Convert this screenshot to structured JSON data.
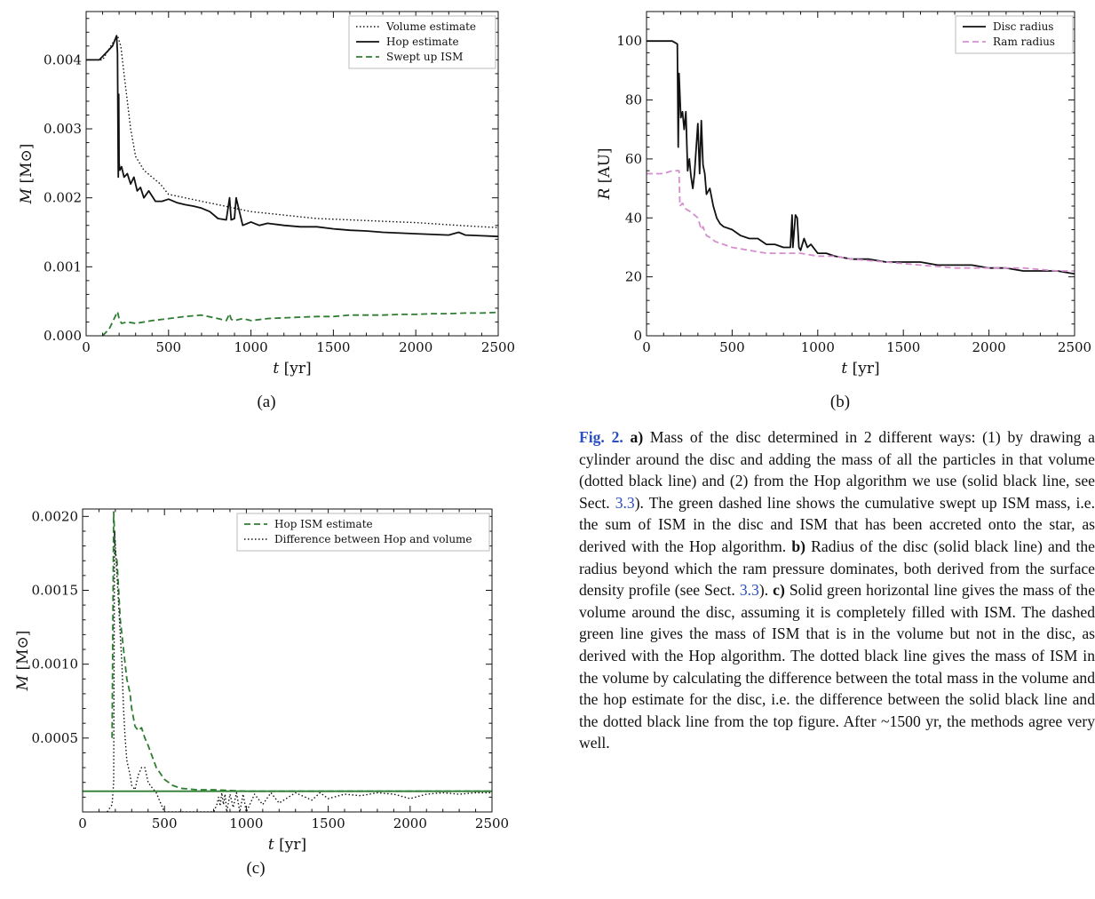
{
  "colors": {
    "black": "#111111",
    "green": "#2e7d32",
    "pink": "#d58fcf",
    "link_blue": "#2a4fc0"
  },
  "chart_data": [
    {
      "id": "a",
      "type": "line",
      "panel_label": "(a)",
      "xlabel_var": "t",
      "xlabel_unit": "[yr]",
      "ylabel_var": "M",
      "ylabel_unit": "[M⊙]",
      "xlim": [
        0,
        2500
      ],
      "ylim": [
        0,
        0.0047
      ],
      "xticks": [
        0,
        500,
        1000,
        1500,
        2000,
        2500
      ],
      "yticks": [
        0.0,
        0.001,
        0.002,
        0.003,
        0.004
      ],
      "ytick_labels": [
        "0.000",
        "0.001",
        "0.002",
        "0.003",
        "0.004"
      ],
      "legend_position": "top-right",
      "series": [
        {
          "name": "Volume estimate",
          "style": "dotted",
          "color": "#111111",
          "x": [
            0,
            100,
            150,
            190,
            210,
            240,
            270,
            300,
            350,
            400,
            450,
            500,
            600,
            700,
            800,
            900,
            1000,
            1200,
            1400,
            1600,
            1800,
            2000,
            2200,
            2400,
            2500
          ],
          "y": [
            0.004,
            0.004,
            0.0042,
            0.00435,
            0.0042,
            0.0036,
            0.003,
            0.0026,
            0.0024,
            0.0023,
            0.0022,
            0.00205,
            0.002,
            0.00195,
            0.0019,
            0.00185,
            0.0018,
            0.00175,
            0.0017,
            0.00168,
            0.00166,
            0.00164,
            0.00161,
            0.00158,
            0.00157
          ]
        },
        {
          "name": "Hop estimate",
          "style": "solid",
          "color": "#111111",
          "x": [
            0,
            80,
            120,
            160,
            185,
            190,
            195,
            198,
            200,
            205,
            215,
            230,
            250,
            270,
            290,
            310,
            330,
            350,
            380,
            420,
            460,
            500,
            550,
            600,
            650,
            700,
            750,
            800,
            850,
            870,
            880,
            900,
            910,
            950,
            1000,
            1050,
            1100,
            1200,
            1300,
            1400,
            1500,
            1600,
            1700,
            1800,
            2000,
            2200,
            2260,
            2300,
            2400,
            2500
          ],
          "y": [
            0.004,
            0.004,
            0.0041,
            0.0042,
            0.00435,
            0.0041,
            0.0023,
            0.0035,
            0.0025,
            0.0024,
            0.00245,
            0.0023,
            0.00235,
            0.0022,
            0.0023,
            0.0021,
            0.00215,
            0.002,
            0.0021,
            0.00195,
            0.00195,
            0.00198,
            0.00193,
            0.0019,
            0.00188,
            0.00185,
            0.0018,
            0.0017,
            0.00168,
            0.002,
            0.00168,
            0.0017,
            0.002,
            0.0016,
            0.00165,
            0.0016,
            0.00163,
            0.0016,
            0.00158,
            0.00158,
            0.00155,
            0.00153,
            0.00152,
            0.0015,
            0.00148,
            0.00146,
            0.0015,
            0.00146,
            0.00145,
            0.00144
          ]
        },
        {
          "name": "Swept up ISM",
          "style": "dashed",
          "color": "#2e7d32",
          "x": [
            100,
            140,
            170,
            190,
            200,
            215,
            250,
            300,
            350,
            400,
            500,
            600,
            700,
            800,
            850,
            870,
            880,
            900,
            950,
            1000,
            1100,
            1200,
            1300,
            1400,
            1500,
            1600,
            1700,
            1800,
            1900,
            2000,
            2100,
            2200,
            2300,
            2400,
            2500
          ],
          "y": [
            0.0,
            0.0001,
            0.00025,
            0.00035,
            0.00025,
            0.00018,
            0.0002,
            0.00018,
            0.0002,
            0.00022,
            0.00025,
            0.00028,
            0.0003,
            0.00025,
            0.00022,
            0.00032,
            0.00024,
            0.00022,
            0.00025,
            0.00022,
            0.00025,
            0.00026,
            0.00027,
            0.00028,
            0.00028,
            0.0003,
            0.0003,
            0.0003,
            0.00031,
            0.00031,
            0.00032,
            0.00032,
            0.00033,
            0.00033,
            0.00034
          ]
        }
      ]
    },
    {
      "id": "b",
      "type": "line",
      "panel_label": "(b)",
      "xlabel_var": "t",
      "xlabel_unit": "[yr]",
      "ylabel_var": "R",
      "ylabel_unit": "[AU]",
      "xlim": [
        0,
        2500
      ],
      "ylim": [
        0,
        110
      ],
      "xticks": [
        0,
        500,
        1000,
        1500,
        2000,
        2500
      ],
      "yticks": [
        0,
        20,
        40,
        60,
        80,
        100
      ],
      "ytick_labels": [
        "0",
        "20",
        "40",
        "60",
        "80",
        "100"
      ],
      "legend_position": "top-right",
      "series": [
        {
          "name": "Disc radius",
          "style": "solid",
          "color": "#111111",
          "x": [
            0,
            150,
            180,
            185,
            190,
            200,
            210,
            220,
            230,
            240,
            250,
            260,
            270,
            280,
            300,
            310,
            320,
            330,
            340,
            350,
            370,
            390,
            410,
            430,
            450,
            500,
            550,
            600,
            650,
            700,
            750,
            800,
            840,
            850,
            855,
            870,
            880,
            890,
            900,
            920,
            940,
            960,
            1000,
            1050,
            1100,
            1200,
            1300,
            1400,
            1500,
            1600,
            1700,
            1800,
            1900,
            2000,
            2100,
            2200,
            2300,
            2400,
            2500
          ],
          "y": [
            100,
            100,
            99,
            64,
            89,
            74,
            76,
            70,
            76,
            56,
            60,
            54,
            50,
            55,
            72,
            55,
            73,
            58,
            55,
            48,
            50,
            44,
            40,
            38,
            37,
            36,
            34,
            33,
            33,
            31,
            31,
            30,
            30,
            41,
            30,
            41,
            40,
            30,
            29,
            33,
            30,
            31,
            28,
            28,
            27,
            26,
            26,
            25,
            25,
            25,
            24,
            24,
            24,
            23,
            23,
            22,
            22,
            22,
            21
          ]
        },
        {
          "name": "Ram radius",
          "style": "dashed",
          "color": "#d58fcf",
          "x": [
            0,
            50,
            100,
            150,
            190,
            195,
            210,
            230,
            260,
            300,
            320,
            330,
            350,
            380,
            400,
            450,
            500,
            600,
            700,
            800,
            900,
            1000,
            1100,
            1200,
            1400,
            1600,
            1800,
            2000,
            2200,
            2400,
            2500
          ],
          "y": [
            55,
            55,
            55,
            56,
            56,
            44,
            45,
            43,
            42,
            40,
            36,
            37,
            34,
            33,
            32,
            31,
            30,
            29,
            28,
            28,
            28,
            27,
            27,
            26,
            25,
            24,
            23,
            23,
            23,
            22,
            22
          ]
        }
      ]
    },
    {
      "id": "c",
      "type": "line",
      "panel_label": "(c)",
      "xlabel_var": "t",
      "xlabel_unit": "[yr]",
      "ylabel_var": "M",
      "ylabel_unit": "[M⊙]",
      "xlim": [
        0,
        2500
      ],
      "ylim": [
        0,
        0.00205
      ],
      "xticks": [
        0,
        500,
        1000,
        1500,
        2000,
        2500
      ],
      "yticks": [
        0.0005,
        0.001,
        0.0015,
        0.002
      ],
      "ytick_labels": [
        "0.0005",
        "0.0010",
        "0.0015",
        "0.0020"
      ],
      "legend_position": "top-right",
      "series": [
        {
          "name": "Hop ISM estimate",
          "style": "dashed",
          "color": "#2e7d32",
          "x": [
            180,
            190,
            200,
            210,
            220,
            230,
            240,
            250,
            270,
            290,
            300,
            320,
            340,
            360,
            380,
            400,
            450,
            500,
            550,
            600,
            700,
            800,
            1000,
            1500,
            2000,
            2500
          ],
          "y": [
            0.0005,
            0.00203,
            0.00175,
            0.0017,
            0.0015,
            0.0013,
            0.0012,
            0.0011,
            0.0009,
            0.0008,
            0.0007,
            0.00058,
            0.00055,
            0.00057,
            0.0005,
            0.00045,
            0.0003,
            0.00022,
            0.00018,
            0.00016,
            0.00015,
            0.00015,
            0.00014,
            0.00014,
            0.00014,
            0.00014
          ]
        },
        {
          "name": "Difference between Hop and volume",
          "style": "dotted",
          "color": "#111111",
          "x": [
            150,
            180,
            190,
            195,
            200,
            210,
            220,
            230,
            240,
            250,
            260,
            270,
            280,
            290,
            300,
            320,
            340,
            360,
            380,
            400,
            420,
            450,
            480,
            500,
            550,
            600,
            650,
            700,
            750,
            800,
            820,
            830,
            840,
            850,
            860,
            870,
            880,
            900,
            920,
            940,
            960,
            980,
            1000,
            1050,
            1100,
            1150,
            1200,
            1300,
            1400,
            1450,
            1500,
            1600,
            1700,
            1800,
            1900,
            2000,
            2100,
            2200,
            2300,
            2400,
            2500
          ],
          "y": [
            0.0,
            5e-05,
            0.0002,
            0.0019,
            0.0018,
            0.0016,
            0.0014,
            0.0012,
            0.001,
            0.0007,
            0.0005,
            0.00035,
            0.0003,
            0.00025,
            0.00018,
            0.00015,
            0.00025,
            0.0003,
            0.0003,
            0.0002,
            0.00017,
            0.00013,
            5e-05,
            0.0,
            0.0,
            0.0,
            0.0,
            0.0,
            0.0,
            0.0,
            5e-05,
            0.0001,
            4e-05,
            0.00013,
            5e-05,
            0.00012,
            0.0,
            0.00012,
            3e-05,
            0.00013,
            0.0,
            0.00012,
            0.0,
            0.00012,
            5e-05,
            0.00013,
            6e-05,
            0.00013,
            8e-05,
            0.00013,
            9e-05,
            0.00012,
            0.00011,
            0.00013,
            0.00012,
            9e-05,
            0.00012,
            0.00013,
            0.00012,
            0.00013,
            0.00013
          ]
        },
        {
          "name": "",
          "style": "solid",
          "color": "#2e7d32",
          "x": [
            0,
            2500
          ],
          "y": [
            0.00014,
            0.00014
          ]
        }
      ]
    }
  ],
  "caption": {
    "fig_label": "Fig. 2.",
    "a_label": "a)",
    "a_text_1": " Mass of the disc determined in 2 different ways: (1) by drawing a cylinder around the disc and adding the mass of all the particles in that volume (dotted black line) and (2) from the Hop algorithm we use (solid black line, see Sect. ",
    "ref_1": "3.3",
    "a_text_2": "). The green dashed line shows the cumulative swept up ISM mass, i.e. the sum of ISM in the disc and ISM that has been accreted onto the star, as derived with the Hop algorithm. ",
    "b_label": "b)",
    "b_text_1": " Radius of the disc (solid black line) and the radius beyond which the ram pressure dominates, both derived from the surface density profile (see Sect. ",
    "ref_2": "3.3",
    "b_text_2": "). ",
    "c_label": "c)",
    "c_text": " Solid green horizontal line gives the mass of the volume around the disc, assuming it is completely filled with ISM. The dashed green line gives the mass of ISM that is in the volume but not in the disc, as derived with the Hop algorithm. The dotted black line gives the mass of ISM in the volume by calculating the difference between the total mass in the volume and the hop estimate for the disc, i.e. the difference between the solid black line and the dotted black line from the top figure. After ~1500 yr, the methods agree very well."
  }
}
